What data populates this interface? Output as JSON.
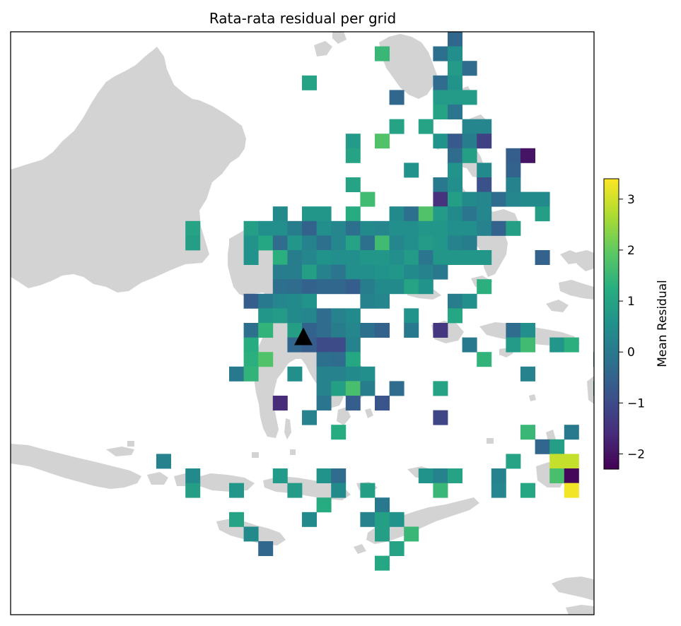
{
  "title": "Rata-rata residual per grid",
  "colorbar": {
    "label": "Mean Residual",
    "min": -2.3,
    "max": 3.4,
    "ticks": [
      3,
      2,
      1,
      0,
      -1,
      -2
    ],
    "tick_labels": [
      "3",
      "2",
      "1",
      "0",
      "−1",
      "−2"
    ],
    "colormap": "viridis"
  },
  "marker": {
    "type": "triangle",
    "color": "#000000",
    "cell": [
      20,
      20.9
    ]
  },
  "colors": {
    "land": "#d3d3d3",
    "ocean": "#ffffff",
    "frame": "#000000"
  },
  "chart_data": {
    "type": "heatmap",
    "title": "Rata-rata residual per grid",
    "grid_units": "cell index (column, row) on a regular lon/lat grid",
    "values_label": "Mean Residual",
    "cells": [
      [
        30,
        0,
        -0.4
      ],
      [
        25,
        1,
        1.5
      ],
      [
        29,
        1,
        -0.2
      ],
      [
        30,
        1,
        0.5
      ],
      [
        30,
        2,
        0.8
      ],
      [
        31,
        2,
        -0.3
      ],
      [
        20,
        3,
        1.0
      ],
      [
        29,
        3,
        -0.3
      ],
      [
        30,
        3,
        0.6
      ],
      [
        26,
        4,
        -0.4
      ],
      [
        29,
        4,
        0.8
      ],
      [
        30,
        4,
        0.8
      ],
      [
        31,
        4,
        0.8
      ],
      [
        29,
        5,
        1.0
      ],
      [
        30,
        5,
        -0.1
      ],
      [
        26,
        6,
        1.0
      ],
      [
        28,
        6,
        1.0
      ],
      [
        31,
        6,
        0.3
      ],
      [
        32,
        6,
        0.3
      ],
      [
        23,
        7,
        0.8
      ],
      [
        25,
        7,
        1.8
      ],
      [
        29,
        7,
        0.6
      ],
      [
        30,
        7,
        -0.7
      ],
      [
        31,
        7,
        0.1
      ],
      [
        32,
        7,
        -1.2
      ],
      [
        23,
        8,
        1.0
      ],
      [
        30,
        8,
        -0.3
      ],
      [
        31,
        8,
        0.9
      ],
      [
        34,
        8,
        -0.6
      ],
      [
        35,
        8,
        -2.0
      ],
      [
        27,
        9,
        0.6
      ],
      [
        30,
        9,
        0.6
      ],
      [
        32,
        9,
        0.4
      ],
      [
        34,
        9,
        -0.5
      ],
      [
        23,
        10,
        1.0
      ],
      [
        29,
        10,
        0.0
      ],
      [
        30,
        10,
        0.5
      ],
      [
        32,
        10,
        -0.9
      ],
      [
        34,
        10,
        0.2
      ],
      [
        24,
        11,
        1.6
      ],
      [
        29,
        11,
        -1.5
      ],
      [
        30,
        11,
        0.9
      ],
      [
        31,
        11,
        0.4
      ],
      [
        32,
        11,
        0.3
      ],
      [
        33,
        11,
        -0.3
      ],
      [
        34,
        11,
        0.3
      ],
      [
        35,
        11,
        0.4
      ],
      [
        36,
        11,
        0.4
      ],
      [
        18,
        12,
        0.4
      ],
      [
        20,
        12,
        0.7
      ],
      [
        21,
        12,
        0.7
      ],
      [
        23,
        12,
        1.2
      ],
      [
        26,
        12,
        0.4
      ],
      [
        27,
        12,
        -0.2
      ],
      [
        28,
        12,
        1.8
      ],
      [
        29,
        12,
        0.8
      ],
      [
        30,
        12,
        0.4
      ],
      [
        31,
        12,
        -0.1
      ],
      [
        32,
        12,
        0.3
      ],
      [
        36,
        12,
        0.9
      ],
      [
        12,
        13,
        1.0
      ],
      [
        16,
        13,
        0.9
      ],
      [
        17,
        13,
        0.5
      ],
      [
        18,
        13,
        0.5
      ],
      [
        19,
        13,
        0.1
      ],
      [
        20,
        13,
        -0.5
      ],
      [
        21,
        13,
        0.5
      ],
      [
        22,
        13,
        0.3
      ],
      [
        23,
        13,
        -0.2
      ],
      [
        24,
        13,
        0.4
      ],
      [
        25,
        13,
        0.3
      ],
      [
        26,
        13,
        0.5
      ],
      [
        27,
        13,
        0.5
      ],
      [
        28,
        13,
        0.7
      ],
      [
        29,
        13,
        0.7
      ],
      [
        30,
        13,
        0.5
      ],
      [
        31,
        13,
        0.5
      ],
      [
        32,
        13,
        0.2
      ],
      [
        33,
        13,
        -0.5
      ],
      [
        34,
        13,
        0.9
      ],
      [
        12,
        14,
        0.9
      ],
      [
        16,
        14,
        0.6
      ],
      [
        17,
        14,
        1.1
      ],
      [
        18,
        14,
        -0.3
      ],
      [
        19,
        14,
        0.7
      ],
      [
        20,
        14,
        0.2
      ],
      [
        21,
        14,
        -0.2
      ],
      [
        22,
        14,
        0.3
      ],
      [
        23,
        14,
        1.0
      ],
      [
        24,
        14,
        -0.2
      ],
      [
        25,
        14,
        1.6
      ],
      [
        26,
        14,
        0.3
      ],
      [
        27,
        14,
        0.5
      ],
      [
        28,
        14,
        0.8
      ],
      [
        29,
        14,
        0.7
      ],
      [
        30,
        14,
        0.2
      ],
      [
        31,
        14,
        0.1
      ],
      [
        16,
        15,
        0.6
      ],
      [
        18,
        15,
        1.3
      ],
      [
        19,
        15,
        0.1
      ],
      [
        20,
        15,
        0.3
      ],
      [
        21,
        15,
        0.6
      ],
      [
        22,
        15,
        0.5
      ],
      [
        23,
        15,
        0.5
      ],
      [
        24,
        15,
        0.7
      ],
      [
        25,
        15,
        0.7
      ],
      [
        26,
        15,
        0.5
      ],
      [
        27,
        15,
        0.8
      ],
      [
        28,
        15,
        -0.1
      ],
      [
        29,
        15,
        0.7
      ],
      [
        30,
        15,
        0.7
      ],
      [
        31,
        15,
        0.7
      ],
      [
        32,
        15,
        0.7
      ],
      [
        36,
        15,
        -0.5
      ],
      [
        18,
        16,
        0.1
      ],
      [
        19,
        16,
        0.1
      ],
      [
        20,
        16,
        0.9
      ],
      [
        21,
        16,
        0.2
      ],
      [
        22,
        16,
        -0.1
      ],
      [
        23,
        16,
        0.5
      ],
      [
        24,
        16,
        0.5
      ],
      [
        25,
        16,
        0.6
      ],
      [
        26,
        16,
        0.7
      ],
      [
        27,
        16,
        0.4
      ],
      [
        28,
        16,
        0.2
      ],
      [
        29,
        16,
        0.0
      ],
      [
        18,
        17,
        -0.2
      ],
      [
        19,
        17,
        -0.3
      ],
      [
        20,
        17,
        -0.5
      ],
      [
        21,
        17,
        -0.4
      ],
      [
        22,
        17,
        -0.4
      ],
      [
        23,
        17,
        -0.6
      ],
      [
        24,
        17,
        0.1
      ],
      [
        25,
        17,
        0.4
      ],
      [
        26,
        17,
        0.4
      ],
      [
        27,
        17,
        1.0
      ],
      [
        28,
        17,
        0.6
      ],
      [
        32,
        17,
        1.3
      ],
      [
        16,
        18,
        -0.6
      ],
      [
        17,
        18,
        0.0
      ],
      [
        18,
        18,
        0.3
      ],
      [
        19,
        18,
        0.4
      ],
      [
        20,
        18,
        0.6
      ],
      [
        24,
        18,
        0.2
      ],
      [
        25,
        18,
        0.3
      ],
      [
        30,
        18,
        0.1
      ],
      [
        31,
        18,
        0.5
      ],
      [
        17,
        19,
        0.7
      ],
      [
        18,
        19,
        0.8
      ],
      [
        19,
        19,
        0.4
      ],
      [
        20,
        19,
        0.3
      ],
      [
        21,
        19,
        -0.3
      ],
      [
        22,
        19,
        0.2
      ],
      [
        23,
        19,
        0.4
      ],
      [
        27,
        19,
        0.6
      ],
      [
        30,
        19,
        1.1
      ],
      [
        16,
        20,
        -0.2
      ],
      [
        17,
        20,
        1.4
      ],
      [
        19,
        20,
        0.9
      ],
      [
        20,
        20,
        -0.5
      ],
      [
        21,
        20,
        -0.3
      ],
      [
        22,
        20,
        0.1
      ],
      [
        23,
        20,
        0.3
      ],
      [
        24,
        20,
        -0.2
      ],
      [
        25,
        20,
        -0.5
      ],
      [
        27,
        20,
        0.0
      ],
      [
        29,
        20,
        -1.4
      ],
      [
        34,
        20,
        -0.3
      ],
      [
        35,
        20,
        0.5
      ],
      [
        16,
        21,
        1.2
      ],
      [
        19,
        21,
        -0.4
      ],
      [
        20,
        21,
        -0.6
      ],
      [
        21,
        21,
        -1.0
      ],
      [
        22,
        21,
        -1.0
      ],
      [
        23,
        21,
        0.2
      ],
      [
        31,
        21,
        0.0
      ],
      [
        34,
        21,
        0.8
      ],
      [
        35,
        21,
        1.6
      ],
      [
        37,
        21,
        0.7
      ],
      [
        38,
        21,
        1.3
      ],
      [
        16,
        22,
        1.3
      ],
      [
        17,
        22,
        1.8
      ],
      [
        21,
        22,
        -0.2
      ],
      [
        22,
        22,
        -0.3
      ],
      [
        23,
        22,
        1.1
      ],
      [
        32,
        22,
        1.4
      ],
      [
        40,
        22,
        1.1
      ],
      [
        15,
        23,
        0.0
      ],
      [
        16,
        23,
        1.4
      ],
      [
        19,
        23,
        0.5
      ],
      [
        21,
        23,
        0.2
      ],
      [
        22,
        23,
        0.2
      ],
      [
        23,
        23,
        0.4
      ],
      [
        24,
        23,
        0.5
      ],
      [
        35,
        23,
        0.2
      ],
      [
        21,
        24,
        0.2
      ],
      [
        22,
        24,
        0.9
      ],
      [
        23,
        24,
        1.7
      ],
      [
        24,
        24,
        0.1
      ],
      [
        26,
        24,
        -0.3
      ],
      [
        29,
        24,
        1.0
      ],
      [
        40,
        24,
        1.1
      ],
      [
        18,
        25,
        -1.6
      ],
      [
        21,
        25,
        -0.1
      ],
      [
        23,
        25,
        -0.6
      ],
      [
        25,
        25,
        -0.8
      ],
      [
        20,
        26,
        0.2
      ],
      [
        29,
        26,
        -1.1
      ],
      [
        22,
        27,
        1.2
      ],
      [
        35,
        27,
        1.5
      ],
      [
        38,
        27,
        0.0
      ],
      [
        36,
        28,
        -0.4
      ],
      [
        37,
        28,
        0.9
      ],
      [
        10,
        29,
        0.2
      ],
      [
        34,
        29,
        1.0
      ],
      [
        37,
        29,
        2.9
      ],
      [
        38,
        29,
        2.9
      ],
      [
        12,
        30,
        0.4
      ],
      [
        18,
        30,
        0.8
      ],
      [
        21,
        30,
        0.6
      ],
      [
        22,
        30,
        -0.3
      ],
      [
        28,
        30,
        0.6
      ],
      [
        29,
        30,
        0.2
      ],
      [
        30,
        30,
        1.0
      ],
      [
        33,
        30,
        0.2
      ],
      [
        37,
        30,
        1.7
      ],
      [
        38,
        30,
        -2.2
      ],
      [
        12,
        31,
        0.9
      ],
      [
        15,
        31,
        0.7
      ],
      [
        19,
        31,
        0.8
      ],
      [
        22,
        31,
        0.4
      ],
      [
        24,
        31,
        0.9
      ],
      [
        29,
        31,
        1.5
      ],
      [
        33,
        31,
        0.3
      ],
      [
        35,
        31,
        1.1
      ],
      [
        38,
        31,
        3.3
      ],
      [
        21,
        32,
        1.2
      ],
      [
        25,
        32,
        0.0
      ],
      [
        15,
        33,
        1.0
      ],
      [
        20,
        33,
        0.4
      ],
      [
        24,
        33,
        0.2
      ],
      [
        25,
        33,
        0.9
      ],
      [
        26,
        33,
        0.6
      ],
      [
        16,
        34,
        0.4
      ],
      [
        25,
        34,
        0.9
      ],
      [
        27,
        34,
        1.5
      ],
      [
        17,
        35,
        -0.4
      ],
      [
        26,
        35,
        1.0
      ],
      [
        25,
        36,
        1.1
      ]
    ]
  }
}
